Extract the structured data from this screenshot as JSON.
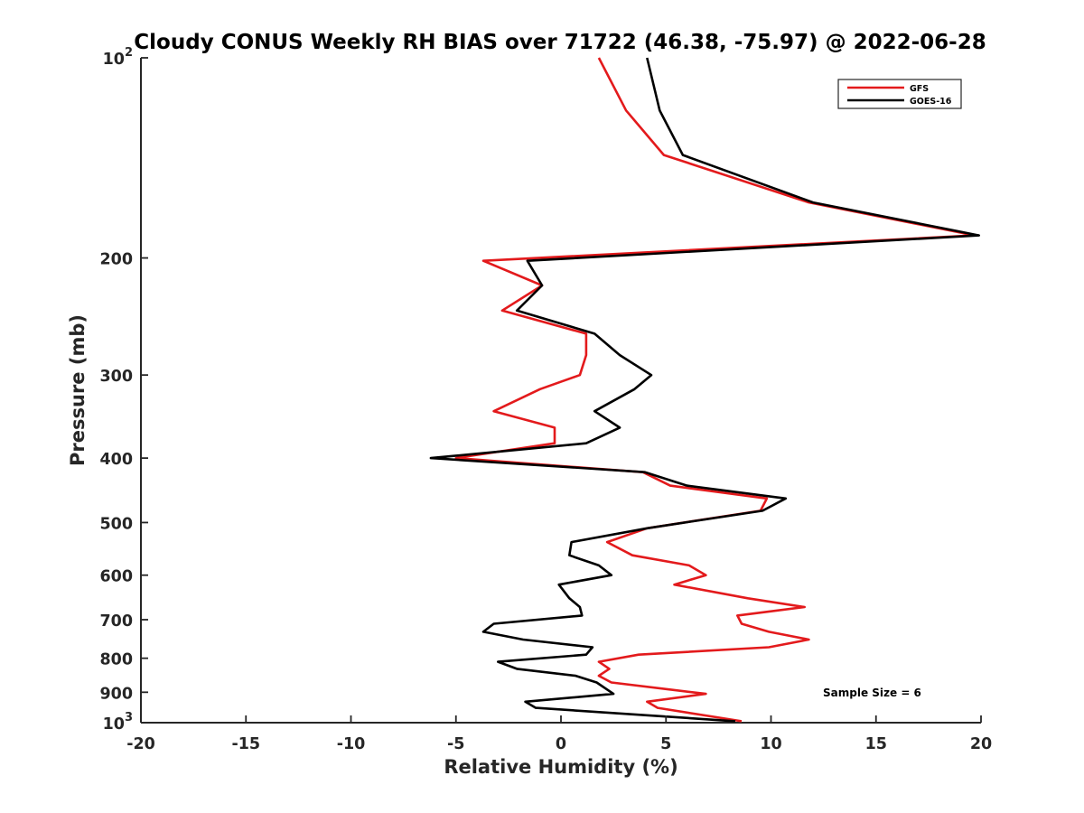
{
  "chart_data": {
    "type": "line",
    "title": "Cloudy CONUS Weekly RH BIAS over 71722 (46.38, -75.97) @ 2022-06-28",
    "xlabel": "Relative Humidity (%)",
    "ylabel": "Pressure (mb)",
    "xlim": [
      -20,
      20
    ],
    "ylim": [
      100,
      1000
    ],
    "yscale": "log",
    "yreversed": true,
    "grid": false,
    "legend_position": "top-right",
    "x_ticks": [
      "-20",
      "-15",
      "-10",
      "-5",
      "0",
      "5",
      "10",
      "15",
      "20"
    ],
    "y_ticks": [
      {
        "value": 100,
        "base": "10",
        "exp": "2"
      },
      {
        "value": 200,
        "label": "200"
      },
      {
        "value": 300,
        "label": "300"
      },
      {
        "value": 400,
        "label": "400"
      },
      {
        "value": 500,
        "label": "500"
      },
      {
        "value": 600,
        "label": "600"
      },
      {
        "value": 700,
        "label": "700"
      },
      {
        "value": 800,
        "label": "800"
      },
      {
        "value": 900,
        "label": "900"
      },
      {
        "value": 1000,
        "base": "10",
        "exp": "3"
      }
    ],
    "series": [
      {
        "name": "GFS",
        "color": "#e31a1c",
        "points": [
          [
            1.8,
            100
          ],
          [
            3.1,
            120
          ],
          [
            4.9,
            140
          ],
          [
            11.8,
            165
          ],
          [
            19.7,
            185
          ],
          [
            -3.7,
            202
          ],
          [
            -0.9,
            220
          ],
          [
            -2.8,
            240
          ],
          [
            1.2,
            260
          ],
          [
            1.2,
            280
          ],
          [
            0.9,
            300
          ],
          [
            -1.0,
            315
          ],
          [
            -3.2,
            340
          ],
          [
            -0.3,
            360
          ],
          [
            -0.3,
            380
          ],
          [
            -5.0,
            400
          ],
          [
            3.9,
            420
          ],
          [
            5.2,
            440
          ],
          [
            9.8,
            460
          ],
          [
            9.5,
            480
          ],
          [
            4.1,
            510
          ],
          [
            2.2,
            535
          ],
          [
            3.4,
            560
          ],
          [
            6.1,
            580
          ],
          [
            6.9,
            600
          ],
          [
            5.4,
            620
          ],
          [
            8.9,
            650
          ],
          [
            11.6,
            670
          ],
          [
            8.4,
            690
          ],
          [
            8.6,
            710
          ],
          [
            9.9,
            730
          ],
          [
            11.8,
            750
          ],
          [
            9.9,
            770
          ],
          [
            3.7,
            790
          ],
          [
            1.8,
            810
          ],
          [
            2.3,
            830
          ],
          [
            1.8,
            850
          ],
          [
            2.4,
            870
          ],
          [
            6.9,
            905
          ],
          [
            4.1,
            930
          ],
          [
            4.6,
            950
          ],
          [
            8.6,
            995
          ]
        ]
      },
      {
        "name": "GOES-16",
        "color": "#000000",
        "points": [
          [
            4.1,
            100
          ],
          [
            4.7,
            120
          ],
          [
            5.8,
            140
          ],
          [
            12.0,
            165
          ],
          [
            19.9,
            185
          ],
          [
            -1.6,
            202
          ],
          [
            -0.9,
            220
          ],
          [
            -2.1,
            240
          ],
          [
            1.6,
            260
          ],
          [
            2.8,
            280
          ],
          [
            4.3,
            300
          ],
          [
            3.5,
            315
          ],
          [
            1.6,
            340
          ],
          [
            2.8,
            360
          ],
          [
            1.2,
            380
          ],
          [
            -6.2,
            400
          ],
          [
            4.0,
            420
          ],
          [
            6.0,
            440
          ],
          [
            10.7,
            460
          ],
          [
            9.6,
            480
          ],
          [
            4.1,
            510
          ],
          [
            0.5,
            535
          ],
          [
            0.4,
            560
          ],
          [
            1.8,
            580
          ],
          [
            2.4,
            600
          ],
          [
            -0.1,
            620
          ],
          [
            0.4,
            650
          ],
          [
            0.9,
            670
          ],
          [
            1.0,
            690
          ],
          [
            -3.2,
            710
          ],
          [
            -3.7,
            730
          ],
          [
            -1.8,
            750
          ],
          [
            1.5,
            770
          ],
          [
            1.2,
            790
          ],
          [
            -3.0,
            810
          ],
          [
            -2.1,
            830
          ],
          [
            0.7,
            850
          ],
          [
            1.7,
            870
          ],
          [
            2.5,
            905
          ],
          [
            -1.7,
            930
          ],
          [
            -1.2,
            950
          ],
          [
            8.3,
            995
          ]
        ]
      }
    ],
    "annotation": "Sample Size = 6"
  }
}
